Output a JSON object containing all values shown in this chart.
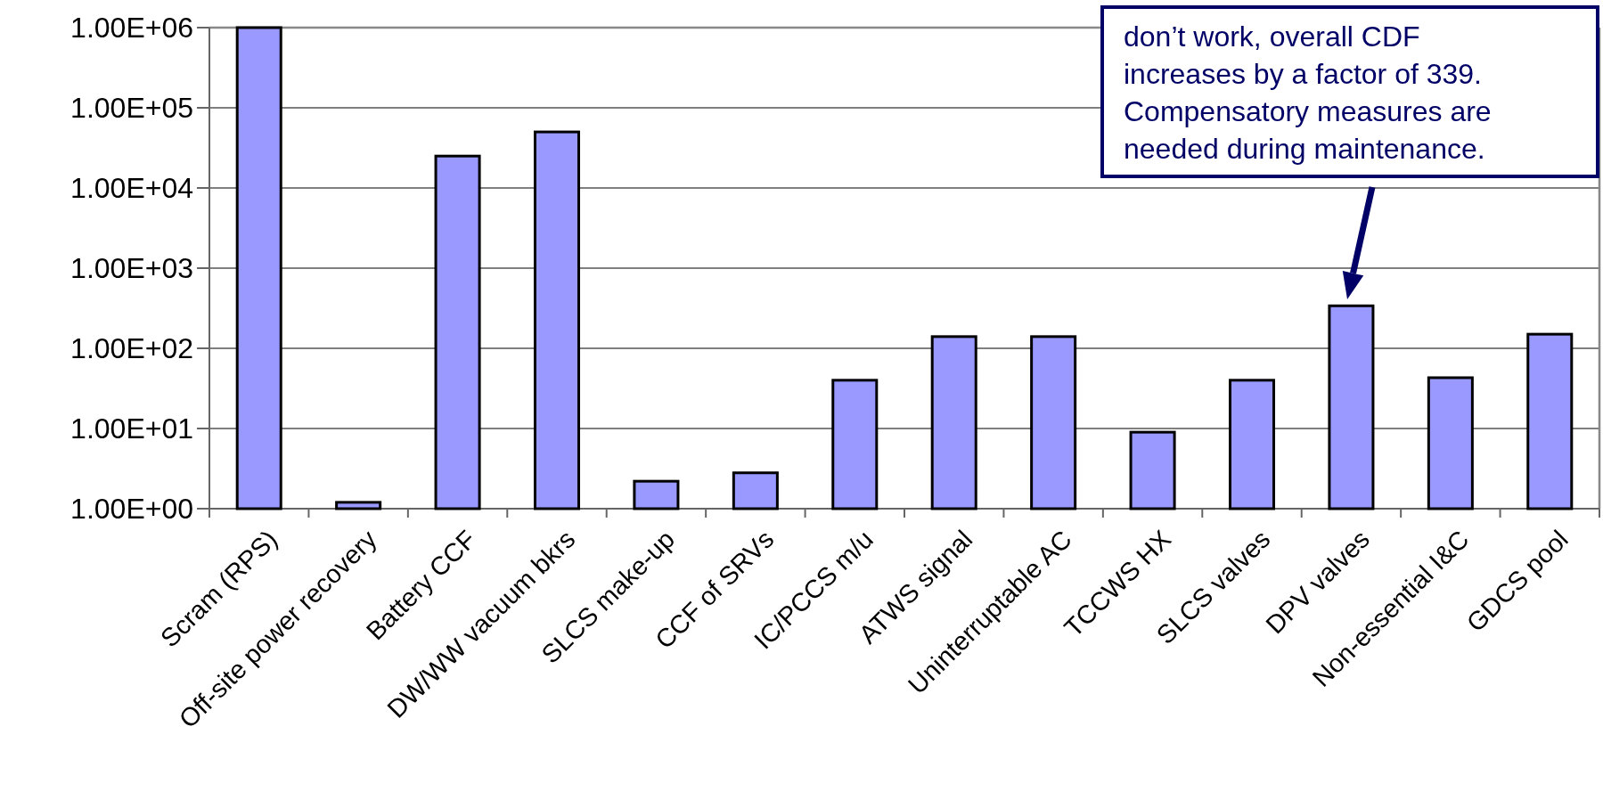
{
  "chart_data": {
    "type": "bar",
    "categories": [
      "Scram (RPS)",
      "Off-site power recovery",
      "Battery CCF",
      "DW/WW vacuum bkrs",
      "SLCS make-up",
      "CCF of SRVs",
      "IC/PCCS m/u",
      "ATWS signal",
      "Uninterruptable AC",
      "TCCWS HX",
      "SLCS valves",
      "DPV valves",
      "Non-essential I&C",
      "GDCS pool"
    ],
    "values": [
      1000000,
      1.2,
      25000,
      50000,
      2.2,
      2.8,
      40,
      140,
      140,
      9,
      40,
      339,
      43,
      150
    ],
    "color": "#9999ff",
    "log": true,
    "ylim": [
      1,
      1000000
    ],
    "yticks": [
      {
        "value": 1,
        "label": "1.00E+00"
      },
      {
        "value": 10,
        "label": "1.00E+01"
      },
      {
        "value": 100,
        "label": "1.00E+02"
      },
      {
        "value": 1000,
        "label": "1.00E+03"
      },
      {
        "value": 10000,
        "label": "1.00E+04"
      },
      {
        "value": 100000,
        "label": "1.00E+05"
      },
      {
        "value": 1000000,
        "label": "1.00E+06"
      }
    ],
    "grid": "y",
    "annotations": [
      "don’t work, overall CDF increases by a factor of 339. Compensatory measures are needed during maintenance."
    ]
  }
}
